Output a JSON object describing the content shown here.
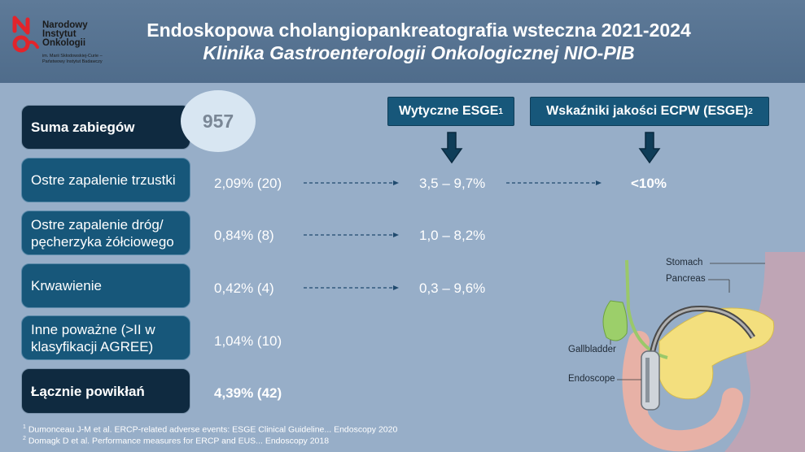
{
  "header": {
    "logo": {
      "line1": "Narodowy",
      "line2": "Instytut",
      "line3": "Onkologii",
      "sub1": "im. Marii Skłodowskiej-Curie –",
      "sub2": "Państwowy Instytut Badawczy"
    },
    "title": "Endoskopowa cholangiopankreatografia wsteczna 2021-2024",
    "subtitle": "Klinika Gastroenterologii Onkologicznej NIO-PIB"
  },
  "summary": {
    "label": "Suma zabiegów",
    "value": "957"
  },
  "columns": {
    "esge": {
      "label": "Wytyczne ESGE",
      "sup": "1"
    },
    "quality": {
      "label": "Wskaźniki jakości ECPW (ESGE)",
      "sup": "2"
    }
  },
  "rows": [
    {
      "label": "Ostre zapalenie trzustki",
      "value": "2,09% (20)",
      "esge": "3,5 – 9,7%",
      "quality": "<10%"
    },
    {
      "label_line1": "Ostre zapalenie dróg/",
      "label_line2": "pęcherzyka żółciowego",
      "value": "0,84% (8)",
      "esge": "1,0 – 8,2%"
    },
    {
      "label": "Krwawienie",
      "value": "0,42% (4)",
      "esge": "0,3 – 9,6%"
    },
    {
      "label_line1": "Inne poważne (>II w",
      "label_line2": "klasyfikacji AGREE)",
      "value": "1,04% (10)"
    }
  ],
  "total": {
    "label": "Łącznie powikłań",
    "value": "4,39% (42)"
  },
  "footnotes": [
    {
      "sup": "1",
      "text": " Dumonceau J-M et al. ERCP-related adverse events: ESGE Clinical Guideline... Endoscopy 2020"
    },
    {
      "sup": "2",
      "text": " Domagk D et al. Performance measures for ERCP and EUS... Endoscopy 2018"
    }
  ],
  "illustration": {
    "stomach": "Stomach",
    "pancreas": "Pancreas",
    "gallbladder": "Gallbladder",
    "endoscope": "Endoscope"
  },
  "colors": {
    "background": "#97aec8",
    "header": "#5e7a98",
    "box_dark": "#0f2a40",
    "box_mid": "#17577a",
    "logo_red": "#e3242b",
    "arrow": "#0f3d58"
  }
}
